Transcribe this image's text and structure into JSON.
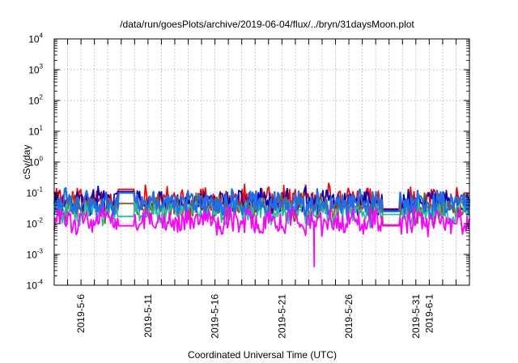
{
  "chart_data": {
    "type": "line",
    "title": "/data/run/goesPlots/archive/2019-06-04/flux/../bryn/31daysMoon.plot",
    "xlabel": "Coordinated Universal Time (UTC)",
    "ylabel": "cSv/day",
    "yscale": "log",
    "ylim": [
      0.0001,
      10000
    ],
    "xlim": [
      "2019-05-04",
      "2019-06-04"
    ],
    "grid": true,
    "y_ticks": [
      {
        "base": "10",
        "exp": "-4",
        "value": 0.0001
      },
      {
        "base": "10",
        "exp": "-3",
        "value": 0.001
      },
      {
        "base": "10",
        "exp": "-2",
        "value": 0.01
      },
      {
        "base": "10",
        "exp": "-1",
        "value": 0.1
      },
      {
        "base": "10",
        "exp": "0",
        "value": 1
      },
      {
        "base": "10",
        "exp": "1",
        "value": 10
      },
      {
        "base": "10",
        "exp": "2",
        "value": 100
      },
      {
        "base": "10",
        "exp": "3",
        "value": 1000
      },
      {
        "base": "10",
        "exp": "4",
        "value": 10000
      }
    ],
    "x_ticks": [
      {
        "label": "2019-5-6",
        "date": "2019-05-06"
      },
      {
        "label": "2019-5-11",
        "date": "2019-05-11"
      },
      {
        "label": "2019-5-16",
        "date": "2019-05-16"
      },
      {
        "label": "2019-5-21",
        "date": "2019-05-21"
      },
      {
        "label": "2019-5-26",
        "date": "2019-05-26"
      },
      {
        "label": "2019-5-31",
        "date": "2019-05-31"
      },
      {
        "label": "2019-6-1",
        "date": "2019-06-01"
      }
    ],
    "series": [
      {
        "color": "#ff0000",
        "base": 0.06,
        "spread": 0.08,
        "data_gaps": [
          [
            "2019-05-08T18:00",
            "2019-05-09T23:00",
            0.13
          ],
          [
            "2019-05-28T12:00",
            "2019-05-29T18:00",
            0.03
          ]
        ]
      },
      {
        "color": "#0000c0",
        "base": 0.05,
        "spread": 0.07,
        "data_gaps": [
          [
            "2019-05-08T18:00",
            "2019-05-09T23:00",
            0.11
          ],
          [
            "2019-05-28T12:00",
            "2019-05-29T18:00",
            0.028
          ]
        ]
      },
      {
        "color": "#8b5a2b",
        "base": 0.032,
        "spread": 0.06,
        "data_gaps": [
          [
            "2019-05-08T18:00",
            "2019-05-09T23:00",
            0.045
          ],
          [
            "2019-05-28T12:00",
            "2019-05-29T18:00",
            0.009
          ]
        ]
      },
      {
        "color": "#20c0a0",
        "base": 0.025,
        "spread": 0.06,
        "data_gaps": [
          [
            "2019-05-08T18:00",
            "2019-05-09T23:00",
            0.017
          ],
          [
            "2019-05-28T12:00",
            "2019-05-29T18:00",
            0.02
          ]
        ]
      },
      {
        "color": "#1e6ee8",
        "base": 0.045,
        "spread": 0.08,
        "data_gaps": [
          [
            "2019-05-08T18:00",
            "2019-05-09T23:00",
            0.1
          ],
          [
            "2019-05-28T12:00",
            "2019-05-29T18:00",
            0.025
          ]
        ]
      },
      {
        "color": "#ff00ff",
        "base": 0.012,
        "spread": 0.09,
        "data_gaps": [
          [
            "2019-05-08T18:00",
            "2019-05-09T23:00",
            0.0085
          ],
          [
            "2019-05-28T12:00",
            "2019-05-29T18:00",
            0.0085
          ]
        ],
        "spike": {
          "date": "2019-05-23T10:00",
          "value": 0.0004
        }
      }
    ]
  }
}
